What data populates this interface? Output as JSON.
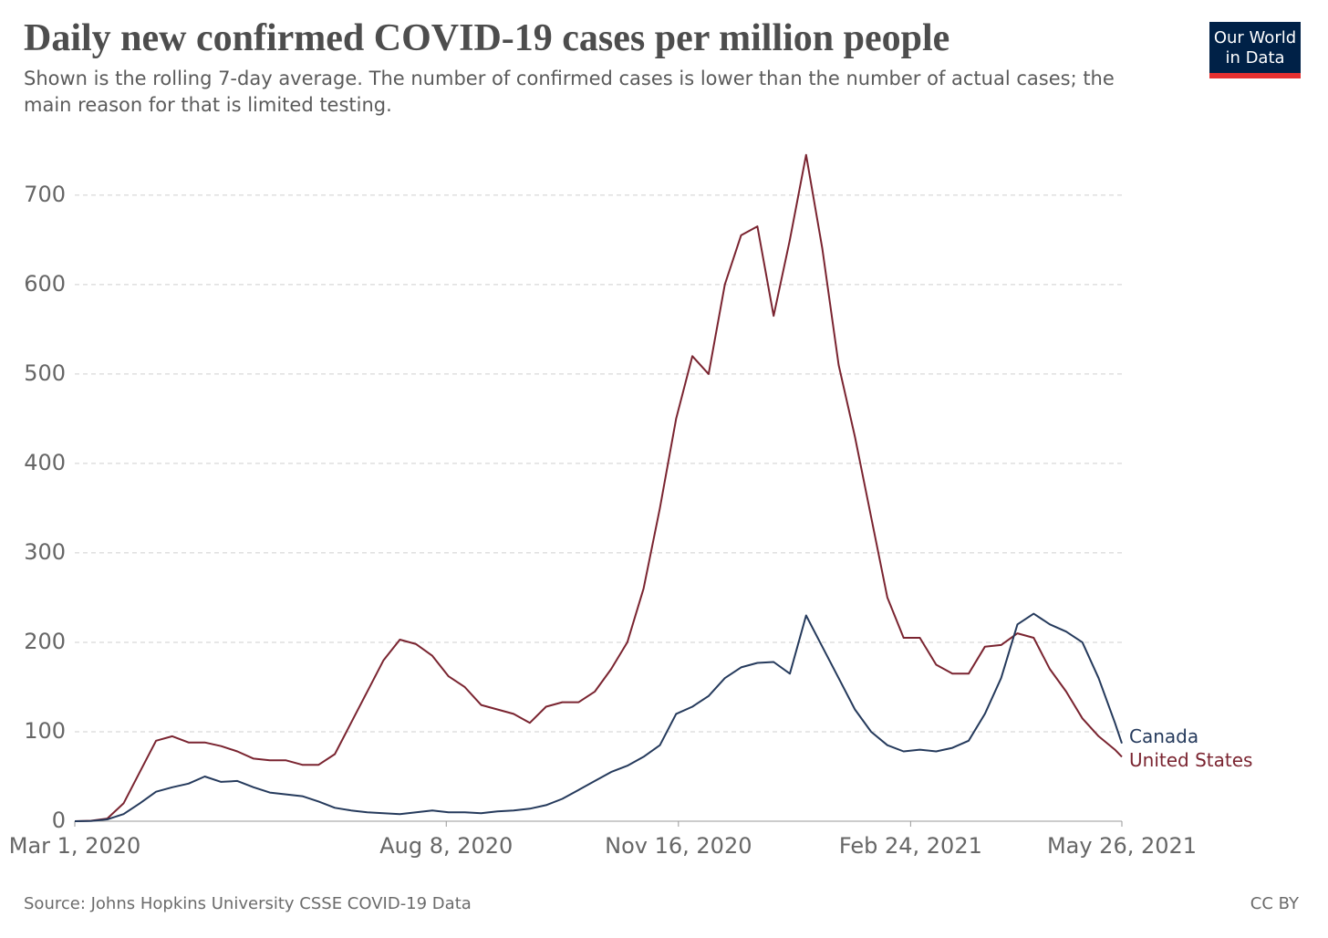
{
  "chart_data": {
    "type": "line",
    "title": "Daily new confirmed COVID-19 cases per million people",
    "subtitle": "Shown is the rolling 7-day average. The number of confirmed cases is lower than the number of actual cases; the main reason for that is limited testing.",
    "source": "Source: Johns Hopkins University CSSE COVID-19 Data",
    "license": "CC BY",
    "logo": [
      "Our World",
      "in Data"
    ],
    "x": [
      "2020-03-01",
      "2020-03-08",
      "2020-03-15",
      "2020-03-22",
      "2020-03-29",
      "2020-04-05",
      "2020-04-12",
      "2020-04-19",
      "2020-04-26",
      "2020-05-03",
      "2020-05-10",
      "2020-05-17",
      "2020-05-24",
      "2020-05-31",
      "2020-06-07",
      "2020-06-14",
      "2020-06-21",
      "2020-06-28",
      "2020-07-05",
      "2020-07-12",
      "2020-07-19",
      "2020-07-26",
      "2020-08-02",
      "2020-08-09",
      "2020-08-16",
      "2020-08-23",
      "2020-08-30",
      "2020-09-06",
      "2020-09-13",
      "2020-09-20",
      "2020-09-27",
      "2020-10-04",
      "2020-10-11",
      "2020-10-18",
      "2020-10-25",
      "2020-11-01",
      "2020-11-08",
      "2020-11-15",
      "2020-11-22",
      "2020-11-29",
      "2020-12-06",
      "2020-12-13",
      "2020-12-20",
      "2020-12-27",
      "2021-01-03",
      "2021-01-10",
      "2021-01-17",
      "2021-01-24",
      "2021-01-31",
      "2021-02-07",
      "2021-02-14",
      "2021-02-21",
      "2021-02-28",
      "2021-03-07",
      "2021-03-14",
      "2021-03-21",
      "2021-03-28",
      "2021-04-04",
      "2021-04-11",
      "2021-04-18",
      "2021-04-25",
      "2021-05-02",
      "2021-05-09",
      "2021-05-16",
      "2021-05-23",
      "2021-05-26"
    ],
    "series": [
      {
        "name": "United States",
        "color": "#7a2430",
        "values": [
          0,
          0.5,
          3,
          20,
          55,
          90,
          95,
          88,
          88,
          84,
          78,
          70,
          68,
          68,
          63,
          63,
          75,
          110,
          145,
          180,
          203,
          198,
          185,
          162,
          150,
          130,
          125,
          120,
          110,
          128,
          133,
          133,
          145,
          170,
          200,
          260,
          350,
          450,
          520,
          500,
          600,
          655,
          665,
          565,
          650,
          745,
          640,
          510,
          430,
          340,
          250,
          205,
          205,
          175,
          165,
          165,
          195,
          197,
          210,
          205,
          170,
          145,
          115,
          95,
          80,
          72
        ]
      },
      {
        "name": "Canada",
        "color": "#253a5c",
        "values": [
          0,
          0.3,
          2,
          8,
          20,
          33,
          38,
          42,
          50,
          44,
          45,
          38,
          32,
          30,
          28,
          22,
          15,
          12,
          10,
          9,
          8,
          10,
          12,
          10,
          10,
          9,
          11,
          12,
          14,
          18,
          25,
          35,
          45,
          55,
          62,
          72,
          85,
          120,
          128,
          140,
          160,
          172,
          177,
          178,
          165,
          230,
          195,
          160,
          125,
          100,
          85,
          78,
          80,
          78,
          82,
          90,
          120,
          160,
          220,
          232,
          220,
          212,
          200,
          160,
          110,
          87
        ]
      }
    ],
    "xlim": [
      "2020-03-01",
      "2021-05-26"
    ],
    "xticks": [
      {
        "value": "2020-03-01",
        "label": "Mar 1, 2020"
      },
      {
        "value": "2020-08-08",
        "label": "Aug 8, 2020"
      },
      {
        "value": "2020-11-16",
        "label": "Nov 16, 2020"
      },
      {
        "value": "2021-02-24",
        "label": "Feb 24, 2021"
      },
      {
        "value": "2021-05-26",
        "label": "May 26, 2021"
      }
    ],
    "ylim": [
      0,
      760
    ],
    "yticks": [
      0,
      100,
      200,
      300,
      400,
      500,
      600,
      700
    ],
    "grid": true
  }
}
